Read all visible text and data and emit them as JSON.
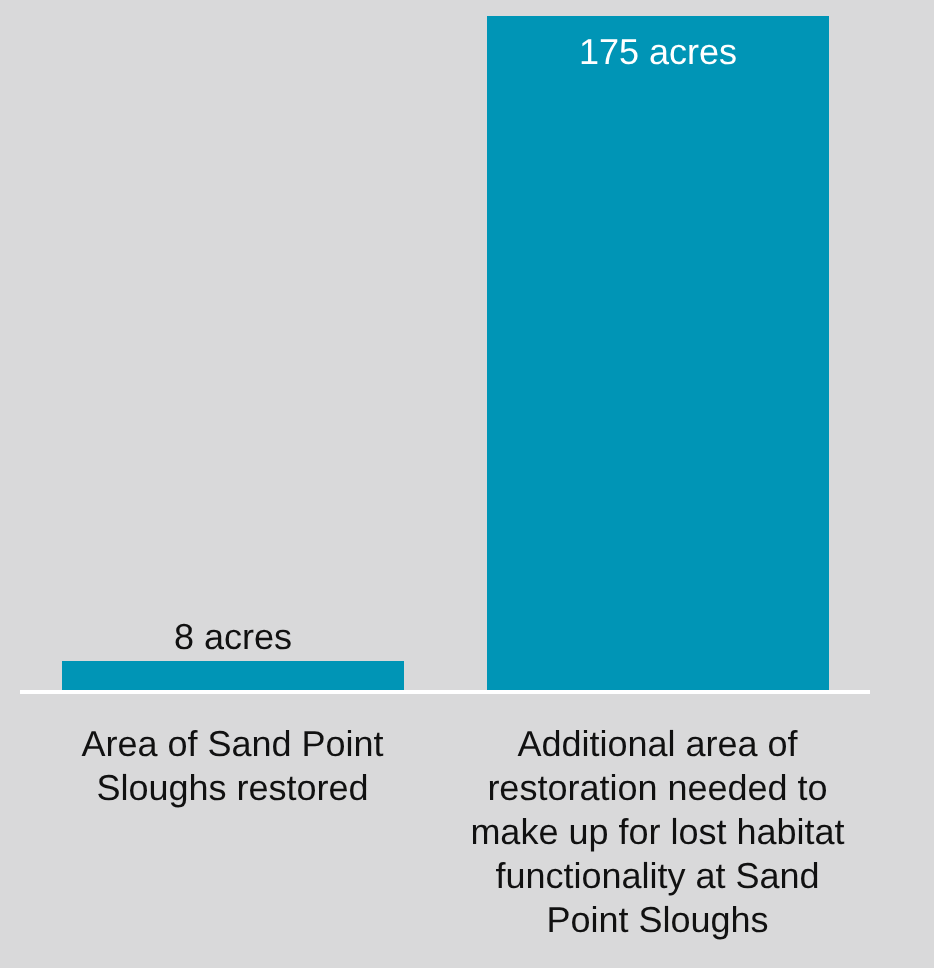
{
  "chart_data": {
    "type": "bar",
    "categories": [
      "Area of Sand Point Sloughs restored",
      "Additional area of restoration needed to make up for lost habitat functionality at Sand Point Sloughs"
    ],
    "values": [
      8,
      175
    ],
    "value_labels": [
      "8 acres",
      "175 acres"
    ],
    "color": "#0095b6",
    "grid": false,
    "legend": false,
    "tick_labels": "x"
  }
}
